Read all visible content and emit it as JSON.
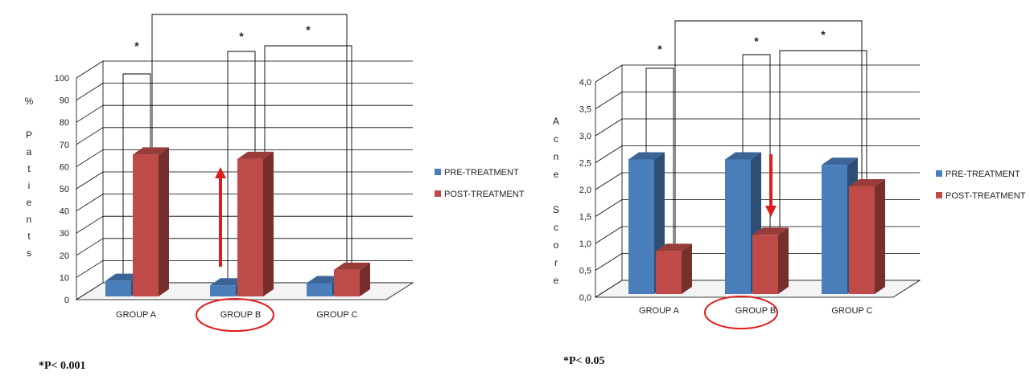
{
  "chart_data": [
    {
      "type": "bar",
      "title": "",
      "xlabel": "",
      "ylabel_chars": [
        "%",
        "",
        "P",
        "a",
        "t",
        "i",
        "e",
        "n",
        "t",
        "s"
      ],
      "ylim": [
        0,
        100
      ],
      "ticks": [
        "0",
        "10",
        "20",
        "30",
        "40",
        "50",
        "60",
        "70",
        "80",
        "90",
        "100"
      ],
      "tick_values": [
        0,
        10,
        20,
        30,
        40,
        50,
        60,
        70,
        80,
        90,
        100
      ],
      "categories": [
        "GROUP A",
        "GROUP B",
        "GROUP C"
      ],
      "series": [
        {
          "name": "PRE-TREATMENT",
          "values": [
            7,
            5,
            6
          ],
          "color": "#4a7ebb"
        },
        {
          "name": "POST-TREATMENT",
          "values": [
            64,
            62,
            12
          ],
          "color": "#be4b48"
        }
      ],
      "significance": [
        "*",
        "*",
        "*"
      ],
      "highlight_category": "GROUP B",
      "arrow_direction": "up",
      "note": "*P< 0.001",
      "legend_position": "right"
    },
    {
      "type": "bar",
      "title": "",
      "xlabel": "",
      "ylabel_chars": [
        "A",
        "c",
        "n",
        "e",
        "",
        "S",
        "c",
        "o",
        "r",
        "e"
      ],
      "ylim": [
        0,
        4
      ],
      "ticks": [
        "0,0",
        "0,5",
        "1,0",
        "1,5",
        "2,0",
        "2,5",
        "3,0",
        "3,5",
        "4,0"
      ],
      "tick_values": [
        0,
        0.5,
        1,
        1.5,
        2,
        2.5,
        3,
        3.5,
        4
      ],
      "categories": [
        "GROUP A",
        "GROUP B",
        "GROUP C"
      ],
      "series": [
        {
          "name": "PRE-TREATMENT",
          "values": [
            2.5,
            2.5,
            2.4
          ],
          "color": "#4a7ebb"
        },
        {
          "name": "POST-TREATMENT",
          "values": [
            0.8,
            1.1,
            2.0
          ],
          "color": "#be4b48"
        }
      ],
      "significance": [
        "*",
        "*",
        "*"
      ],
      "highlight_category": "GROUP B",
      "arrow_direction": "down",
      "note": "*P< 0.05",
      "legend_position": "right"
    }
  ]
}
